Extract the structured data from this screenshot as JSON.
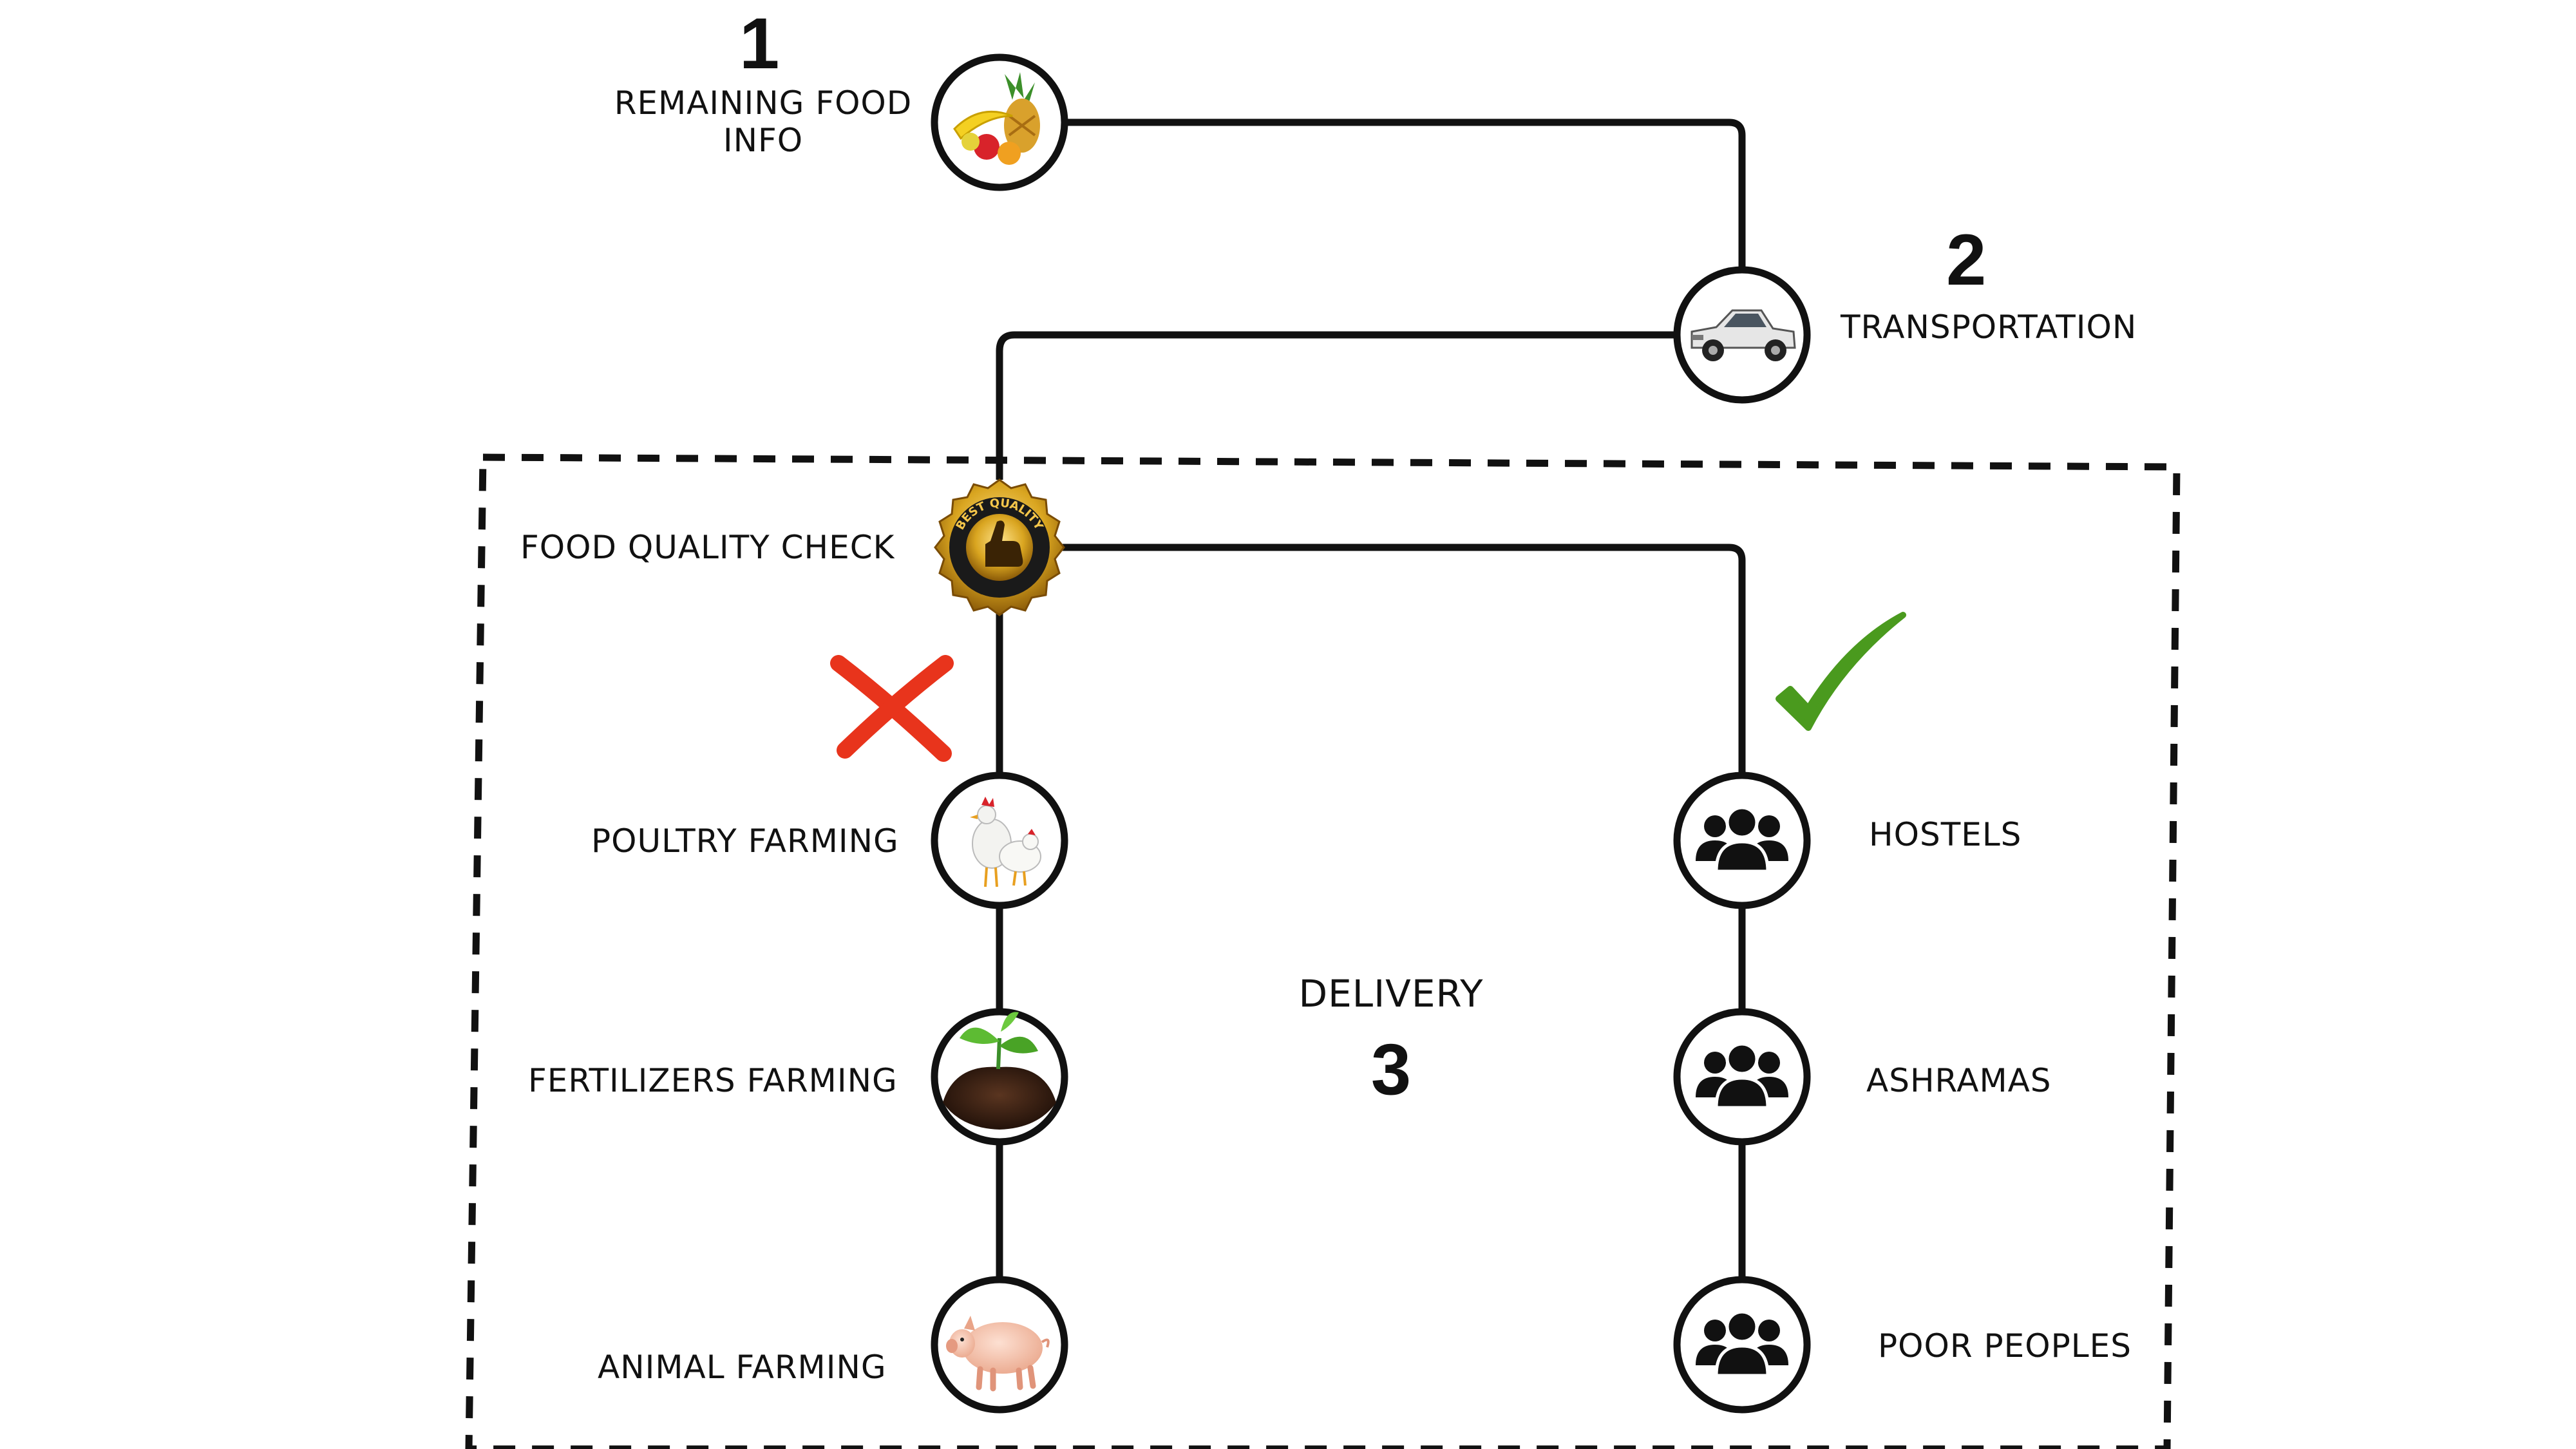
{
  "steps": {
    "step1": {
      "number": "1",
      "label_line1": "REMAINING FOOD",
      "label_line2": "INFO",
      "icon": "fruit-basket-icon"
    },
    "step2": {
      "number": "2",
      "label": "TRANSPORTATION",
      "icon": "pickup-truck-icon"
    },
    "step3": {
      "number": "3",
      "label": "DELIVERY"
    }
  },
  "quality_check": {
    "label": "FOOD QUALITY CHECK",
    "icon": "best-quality-badge-icon",
    "badge_text": "BEST QUALITY"
  },
  "rejected_branch": {
    "marker": "cross-icon",
    "items": [
      {
        "label": "POULTRY FARMING",
        "icon": "chicken-icon"
      },
      {
        "label": "FERTILIZERS FARMING",
        "icon": "soil-sprout-icon"
      },
      {
        "label": "ANIMAL FARMING",
        "icon": "pig-icon"
      }
    ]
  },
  "accepted_branch": {
    "marker": "check-icon",
    "items": [
      {
        "label": "HOSTELS",
        "icon": "people-group-icon"
      },
      {
        "label": "ASHRAMAS",
        "icon": "people-group-icon"
      },
      {
        "label": "POOR PEOPLES",
        "icon": "people-group-icon"
      }
    ]
  },
  "colors": {
    "line": "#111111",
    "cross": "#e8341c",
    "check": "#4a9a1e",
    "badge_gold": "#d9a520",
    "badge_dark": "#1a1a1a"
  }
}
